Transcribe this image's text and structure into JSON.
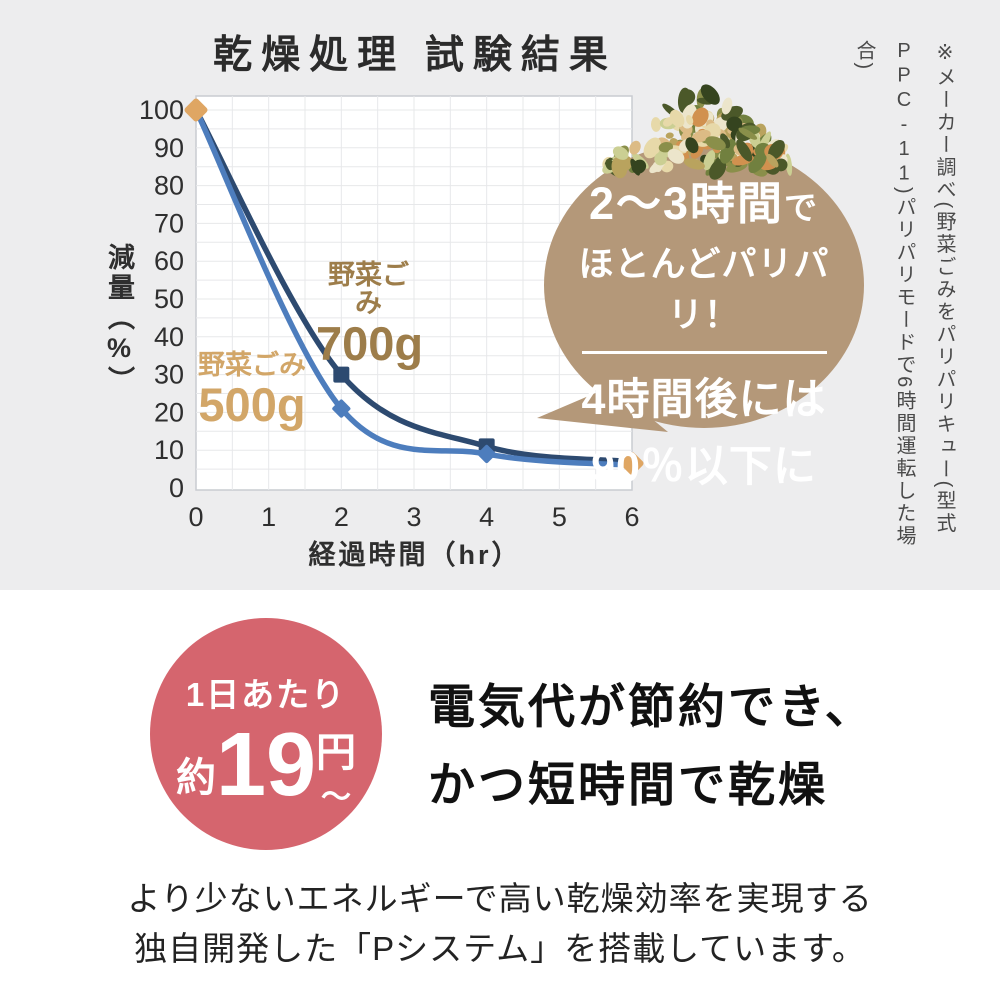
{
  "top": {
    "title": "乾燥処理 試験結果",
    "note_col1": "※メーカー調べ(野菜ごみをパリパリキュー(型式",
    "note_model": "PPC-11",
    "note_col2_rest": ")パリパリモードで6時間運転した場合)"
  },
  "annotation_bubble": {
    "line1_main": "2〜3時間",
    "line1_suffix": "で",
    "line2": "ほとんどパリパリ！",
    "line3": "4時間後には",
    "line4": "90％以下に",
    "bubble_color": "#b49879",
    "text_color": "#ffffff"
  },
  "chart_data": {
    "type": "line",
    "title": "乾燥処理 試験結果",
    "xlabel": "経過時間（hr）",
    "ylabel": "減量（%）",
    "xlim": [
      0,
      6
    ],
    "ylim": [
      0,
      100
    ],
    "x_tick_step": 1,
    "y_tick_step": 10,
    "grid": true,
    "grid_x_step": 0.5,
    "grid_y_step": 5,
    "legend_position": "inline-labels",
    "plot_bg": "#ffffff",
    "grid_color": "#e7e8ea",
    "border_color": "#c9ccd1",
    "tick_color": "#2f2f2f",
    "series": [
      {
        "name": "野菜ごみ 700g",
        "label1": "野菜ごみ",
        "label2": "700g",
        "label_color": "#9d7d4a",
        "color": "#2d4a70",
        "marker": "square",
        "x": [
          0,
          2,
          4,
          6
        ],
        "y": [
          100,
          30,
          11,
          7
        ]
      },
      {
        "name": "野菜ごみ 500g",
        "label1": "野菜ごみ",
        "label2": "500g",
        "label_color": "#d2a668",
        "color": "#4d7dbd",
        "marker": "diamond",
        "x": [
          0,
          2,
          4,
          6
        ],
        "y": [
          100,
          21,
          9,
          6
        ]
      }
    ],
    "endpoint_markers": {
      "color": "#dfa663",
      "shape": "diamond",
      "points": [
        [
          0,
          100
        ],
        [
          6,
          6.5
        ]
      ]
    }
  },
  "bottom": {
    "badge": {
      "line1": "1日あたり",
      "prefix": "約",
      "amount": "19",
      "unit": "円",
      "tilde": "〜",
      "color": "#d5656e"
    },
    "headline_line1": "電気代が節約でき、",
    "headline_line2": "かつ短時間で乾燥",
    "desc_line1": "より少ないエネルギーで高い乾燥効率を実現する",
    "desc_line2": "独自開発した「Pシステム」を搭載しています。"
  }
}
